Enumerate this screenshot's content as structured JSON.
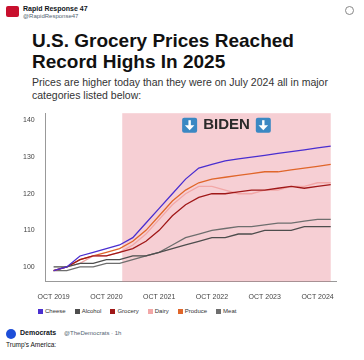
{
  "header": {
    "name": "Rapid Response 47",
    "handle": "@RapidResponse47"
  },
  "chart_data": {
    "type": "line",
    "title": "U.S. Grocery Prices Reached Record Highs In 2025",
    "subtitle": "Prices are higher today than they were on July 2024 all in major categories listed below:",
    "annotations": [
      {
        "text": "BIDEN",
        "x_start": 2021.05,
        "x_end": 2025.0
      }
    ],
    "x": [
      2019.75,
      2020.0,
      2020.25,
      2020.5,
      2020.75,
      2021.0,
      2021.25,
      2021.5,
      2021.75,
      2022.0,
      2022.25,
      2022.5,
      2022.75,
      2023.0,
      2023.25,
      2023.5,
      2023.75,
      2024.0,
      2024.25,
      2024.5,
      2024.75,
      2025.0
    ],
    "xlim": [
      2019.6,
      2025.1
    ],
    "xticks": [
      {
        "value": 2019.75,
        "label": "OCT 2019"
      },
      {
        "value": 2020.75,
        "label": "OCT 2020"
      },
      {
        "value": 2021.75,
        "label": "OCT 2021"
      },
      {
        "value": 2022.75,
        "label": "OCT 2022"
      },
      {
        "value": 2023.75,
        "label": "OCT 2023"
      },
      {
        "value": 2024.75,
        "label": "OCT 2024"
      }
    ],
    "ylim": [
      96,
      142
    ],
    "yticks": [
      100,
      110,
      120,
      130,
      140
    ],
    "grid": false,
    "legend": "bottom",
    "series": [
      {
        "name": "Cheese",
        "color": "#4a2fd0",
        "values": [
          99,
          100,
          103,
          104,
          105,
          106,
          108,
          112,
          116,
          120,
          124,
          127,
          128,
          129,
          129.5,
          130,
          130.5,
          131,
          131.5,
          132,
          132.5,
          133
        ]
      },
      {
        "name": "Alcohol",
        "color": "#4d4d4d",
        "values": [
          100,
          100,
          101,
          101,
          102,
          102,
          103,
          103,
          104,
          105,
          106,
          107,
          108,
          108,
          109,
          109,
          110,
          110,
          110,
          111,
          111,
          111
        ]
      },
      {
        "name": "Grocery",
        "color": "#a01818",
        "values": [
          99,
          100,
          102,
          103,
          103,
          104,
          105,
          107,
          110,
          114,
          117,
          119,
          120,
          120,
          120.5,
          121,
          121,
          121.5,
          122,
          121.5,
          122,
          122.5
        ]
      },
      {
        "name": "Dairy",
        "color": "#f2a7a7",
        "values": [
          99,
          100,
          101,
          103,
          103,
          104,
          106,
          109,
          113,
          117,
          120,
          122,
          122,
          121,
          120,
          120,
          121,
          121,
          122,
          122,
          123,
          123
        ]
      },
      {
        "name": "Produce",
        "color": "#e0662a",
        "values": [
          99,
          100,
          102,
          103,
          104,
          105,
          107,
          110,
          114,
          118,
          121,
          123,
          124,
          124.5,
          125,
          125.5,
          126,
          126,
          126.5,
          127,
          127.5,
          128
        ]
      },
      {
        "name": "Meat",
        "color": "#6e6e6e",
        "values": [
          99,
          99,
          100,
          100,
          101,
          101,
          102,
          103,
          104,
          106,
          108,
          109,
          110,
          110.5,
          111,
          111,
          111.5,
          112,
          112,
          112.5,
          113,
          113
        ]
      }
    ]
  },
  "quote": {
    "name": "Democrats",
    "meta": "@TheDemocrats · 1h",
    "text": "Trump's America:"
  }
}
